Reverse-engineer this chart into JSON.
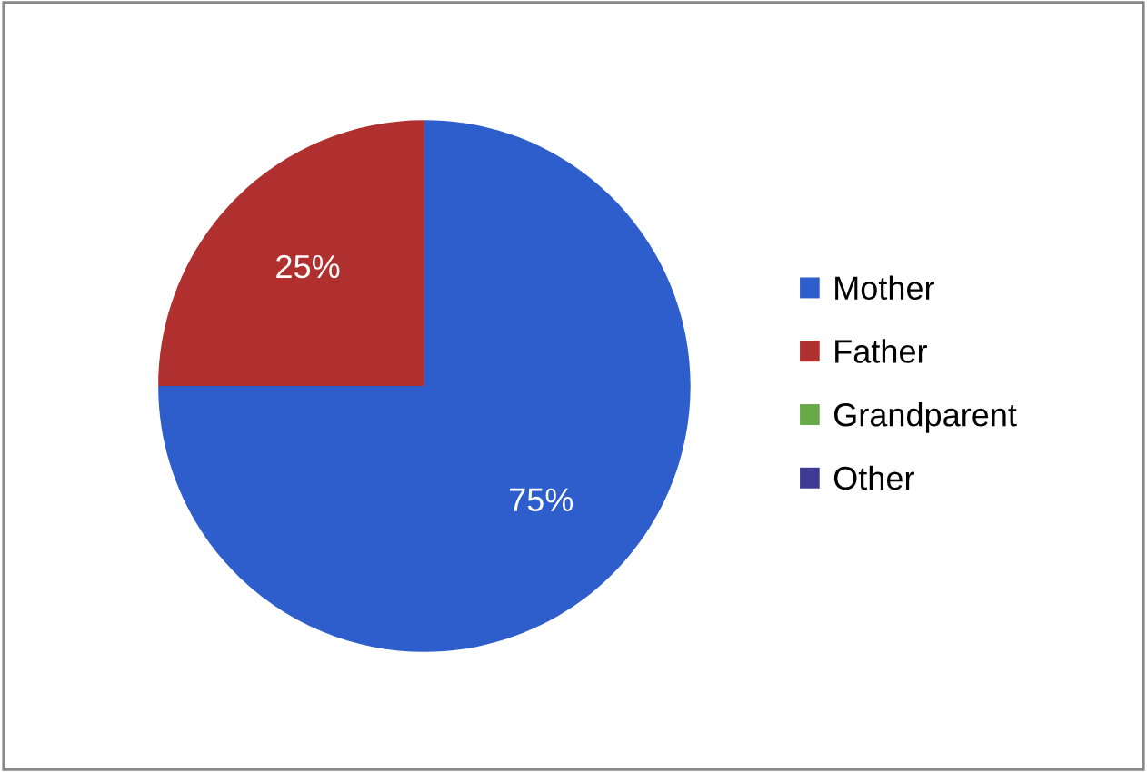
{
  "chart_data": {
    "type": "pie",
    "categories": [
      "Mother",
      "Father",
      "Grandparent",
      "Other"
    ],
    "values": [
      75,
      25,
      0,
      0
    ],
    "colors": [
      "#2e5ecb",
      "#b02f2f",
      "#68a94a",
      "#3d3a94"
    ],
    "value_labels": [
      "75%",
      "25%",
      null,
      null
    ],
    "legend": "right"
  }
}
